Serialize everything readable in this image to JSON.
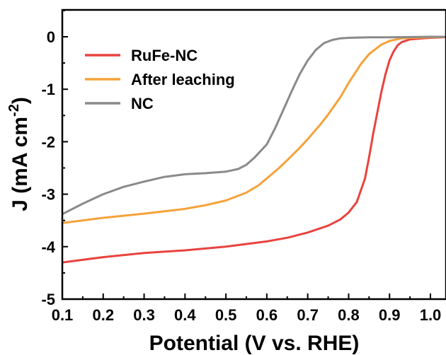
{
  "chart_data": {
    "type": "line",
    "xlabel": "Potential (V vs. RHE)",
    "ylabel_main": "J (mA cm",
    "ylabel_sup": "-2",
    "ylabel_close": ")",
    "xlim": [
      0.1,
      1.05
    ],
    "ylim": [
      -5,
      0.5
    ],
    "xticks": [
      0.1,
      0.2,
      0.3,
      0.4,
      0.5,
      0.6,
      0.7,
      0.8,
      0.9,
      1.0
    ],
    "xtick_labels": [
      "0.1",
      "0.2",
      "0.3",
      "0.4",
      "0.5",
      "0.6",
      "0.7",
      "0.8",
      "0.9",
      "1.0"
    ],
    "yticks": [
      0,
      -1,
      -2,
      -3,
      -4,
      -5
    ],
    "ytick_labels": [
      "0",
      "-1",
      "-2",
      "-3",
      "-4",
      "-5"
    ],
    "legend_position": "top-left",
    "grid": false,
    "series": [
      {
        "name": "RuFe-NC",
        "color": "#e8433f",
        "x": [
          0.1,
          0.15,
          0.2,
          0.3,
          0.4,
          0.5,
          0.6,
          0.65,
          0.7,
          0.75,
          0.78,
          0.8,
          0.82,
          0.84,
          0.85,
          0.86,
          0.87,
          0.88,
          0.89,
          0.9,
          0.91,
          0.92,
          0.93,
          0.95,
          0.98,
          1.0,
          1.03,
          1.05
        ],
        "y": [
          -4.3,
          -4.25,
          -4.2,
          -4.12,
          -4.07,
          -4.0,
          -3.9,
          -3.83,
          -3.73,
          -3.6,
          -3.48,
          -3.35,
          -3.15,
          -2.7,
          -2.3,
          -1.85,
          -1.45,
          -1.05,
          -0.72,
          -0.45,
          -0.28,
          -0.16,
          -0.1,
          -0.05,
          -0.03,
          -0.02,
          -0.01,
          0.0
        ]
      },
      {
        "name": "After leaching",
        "color": "#f5a23a",
        "x": [
          0.1,
          0.2,
          0.3,
          0.4,
          0.45,
          0.5,
          0.55,
          0.58,
          0.6,
          0.63,
          0.65,
          0.68,
          0.7,
          0.73,
          0.75,
          0.78,
          0.8,
          0.83,
          0.85,
          0.88,
          0.9,
          0.93,
          0.95,
          1.0,
          1.05
        ],
        "y": [
          -3.55,
          -3.45,
          -3.37,
          -3.28,
          -3.21,
          -3.12,
          -2.97,
          -2.83,
          -2.7,
          -2.5,
          -2.35,
          -2.12,
          -1.95,
          -1.68,
          -1.48,
          -1.15,
          -0.88,
          -0.52,
          -0.33,
          -0.15,
          -0.08,
          -0.03,
          -0.02,
          -0.01,
          0.0
        ]
      },
      {
        "name": "NC",
        "color": "#8a8a8a",
        "x": [
          0.1,
          0.15,
          0.2,
          0.25,
          0.3,
          0.35,
          0.4,
          0.45,
          0.5,
          0.53,
          0.55,
          0.57,
          0.6,
          0.62,
          0.64,
          0.66,
          0.68,
          0.7,
          0.72,
          0.74,
          0.76,
          0.78,
          0.8,
          0.85,
          0.9,
          1.0,
          1.05
        ],
        "y": [
          -3.38,
          -3.18,
          -3.0,
          -2.86,
          -2.76,
          -2.67,
          -2.62,
          -2.6,
          -2.57,
          -2.52,
          -2.44,
          -2.3,
          -2.05,
          -1.75,
          -1.4,
          -1.05,
          -0.72,
          -0.45,
          -0.25,
          -0.12,
          -0.06,
          -0.03,
          -0.02,
          -0.01,
          -0.01,
          0.0,
          0.0
        ]
      }
    ]
  }
}
